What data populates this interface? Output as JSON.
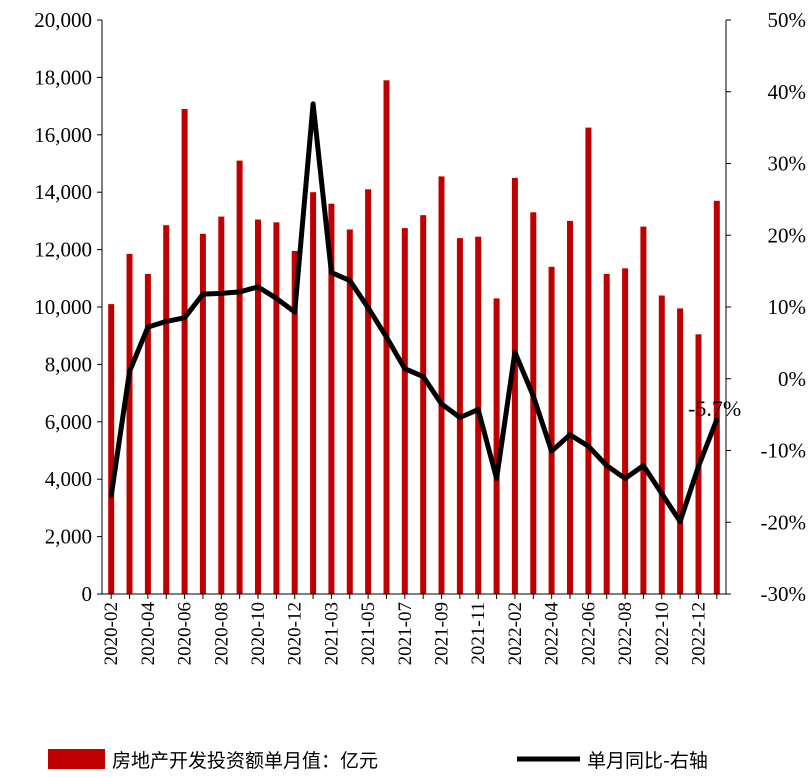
{
  "chart_data": {
    "type": "bar+line",
    "categories": [
      "2020-02",
      "2020-03",
      "2020-04",
      "2020-05",
      "2020-06",
      "2020-07",
      "2020-08",
      "2020-09",
      "2020-10",
      "2020-11",
      "2020-12",
      "2021-01",
      "2021-03",
      "2021-04",
      "2021-05",
      "2021-06",
      "2021-07",
      "2021-08",
      "2021-09",
      "2021-10",
      "2021-11",
      "2021-12",
      "2022-02",
      "2022-03",
      "2022-04",
      "2022-05",
      "2022-06",
      "2022-07",
      "2022-08",
      "2022-09",
      "2022-10",
      "2022-11",
      "2022-12",
      "2023-01"
    ],
    "tick_labels": [
      "2020-02",
      "2020-04",
      "2020-06",
      "2020-08",
      "2020-10",
      "2020-12",
      "2021-03",
      "2021-05",
      "2021-07",
      "2021-09",
      "2021-11",
      "2022-02",
      "2022-04",
      "2022-06",
      "2022-08",
      "2022-10",
      "2022-12"
    ],
    "series": [
      {
        "name": "房地产开发投资额单月值：亿元",
        "type": "bar",
        "axis": "left",
        "color": "#C00000",
        "values": [
          10100,
          11850,
          11150,
          12850,
          16900,
          12550,
          13150,
          15100,
          13050,
          12950,
          11950,
          14000,
          13600,
          12700,
          14100,
          17900,
          12750,
          13200,
          14550,
          12400,
          12450,
          10300,
          14500,
          13300,
          11400,
          13000,
          16250,
          11150,
          11350,
          12800,
          10400,
          9950,
          9050,
          13700
        ]
      },
      {
        "name": "单月同比-右轴",
        "type": "line",
        "axis": "right",
        "color": "#000000",
        "unit": "%",
        "values": [
          -16.3,
          1.0,
          7.2,
          8.0,
          8.5,
          11.8,
          11.9,
          12.1,
          12.8,
          11.2,
          9.3,
          38.3,
          14.8,
          13.7,
          9.9,
          5.8,
          1.4,
          0.3,
          -3.5,
          -5.4,
          -4.3,
          -13.9,
          3.7,
          -2.4,
          -10.1,
          -7.8,
          -9.4,
          -12.1,
          -13.9,
          -12.1,
          -16.0,
          -19.9,
          -12.2,
          -5.7
        ]
      }
    ],
    "ylim_left": [
      0,
      20000
    ],
    "yticks_left": [
      "0",
      "2,000",
      "4,000",
      "6,000",
      "8,000",
      "10,000",
      "12,000",
      "14,000",
      "16,000",
      "18,000",
      "20,000"
    ],
    "ylim_right": [
      -30,
      50
    ],
    "yticks_right": [
      "-30%",
      "-20%",
      "-10%",
      "0%",
      "10%",
      "20%",
      "30%",
      "40%",
      "50%"
    ],
    "annotation": "-5.7%",
    "legend_position": "bottom",
    "grid": false
  }
}
